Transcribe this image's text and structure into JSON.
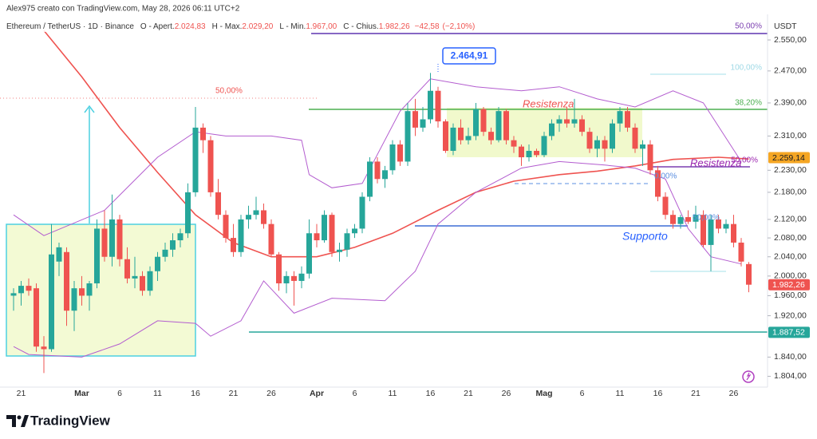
{
  "chart_data": {
    "type": "candlestick",
    "header": "Alex975 creato con TradingView.com, May 28, 2026 06:11 UTC+2",
    "symbol": "Ethereum / TetherUS · 1D · Binance",
    "ohlc_legend": [
      {
        "name": "O - Apert.",
        "value": 2024.83,
        "label": "2.024,83"
      },
      {
        "name": "H - Max.",
        "value": 2029.2,
        "label": "2.029,20"
      },
      {
        "name": "L - Min.",
        "value": 1967,
        "label": "1.967,00"
      },
      {
        "name": "C - Chius.",
        "value": 1982.26,
        "label": "1.982,26"
      }
    ],
    "change": {
      "value": -42.58,
      "label": "−42,58"
    },
    "change_pct": {
      "value": -2.1,
      "label": "(−2,10%)"
    },
    "currency": "USDT",
    "categories": [
      null,
      "21",
      null,
      null,
      null,
      null,
      null,
      null,
      null,
      "Mar",
      null,
      null,
      null,
      null,
      "6",
      null,
      null,
      null,
      null,
      "11",
      null,
      null,
      null,
      null,
      "16",
      null,
      null,
      null,
      null,
      "21",
      null,
      null,
      null,
      null,
      "26",
      null,
      null,
      null,
      null,
      null,
      "Apr",
      null,
      null,
      null,
      null,
      "6",
      null,
      null,
      null,
      null,
      "11",
      null,
      null,
      null,
      null,
      "16",
      null,
      null,
      null,
      null,
      "21",
      null,
      null,
      null,
      null,
      "26",
      null,
      null,
      null,
      null,
      "Mag",
      null,
      null,
      null,
      null,
      "6",
      null,
      null,
      null,
      null,
      "11",
      null,
      null,
      null,
      null,
      "16",
      null,
      null,
      null,
      null,
      "21",
      null,
      null,
      null,
      null,
      "26",
      null,
      null
    ],
    "open": [
      1960,
      1965,
      1980,
      1975,
      1860,
      1855,
      2030,
      2050,
      1930,
      1975,
      1960,
      1985,
      2100,
      2040,
      2120,
      2035,
      1995,
      2000,
      1970,
      2010,
      2040,
      2055,
      2075,
      2090,
      2180,
      2330,
      2300,
      2180,
      2130,
      2080,
      2050,
      2120,
      2130,
      2140,
      2110,
      2045,
      1985,
      2000,
      1990,
      2005,
      2090,
      2075,
      2130,
      2050,
      2055,
      2090,
      2100,
      2170,
      2250,
      2210,
      2230,
      2290,
      2250,
      2370,
      2330,
      2350,
      2420,
      2345,
      2275,
      2330,
      2300,
      2310,
      2375,
      2320,
      2300,
      2370,
      2300,
      2285,
      2260,
      2275,
      2265,
      2310,
      2340,
      2350,
      2340,
      2350,
      2320,
      2280,
      2300,
      2280,
      2340,
      2370,
      2330,
      2280,
      2290,
      2230,
      2170,
      2130,
      2110,
      2125,
      2115,
      2130,
      2065,
      2120,
      2100,
      2110,
      2070,
      2024.83
    ],
    "high": [
      1975,
      1990,
      1995,
      1985,
      1880,
      2110,
      2070,
      2060,
      1990,
      2000,
      1990,
      2120,
      2140,
      2175,
      2130,
      2060,
      2040,
      2010,
      2020,
      2050,
      2070,
      2090,
      2100,
      2200,
      2380,
      2340,
      2310,
      2210,
      2140,
      2110,
      2130,
      2150,
      2170,
      2155,
      2120,
      2050,
      2010,
      2010,
      2020,
      2120,
      2110,
      2140,
      2135,
      2070,
      2100,
      2110,
      2180,
      2260,
      2260,
      2240,
      2300,
      2300,
      2390,
      2400,
      2380,
      2464.91,
      2430,
      2350,
      2340,
      2350,
      2330,
      2390,
      2380,
      2330,
      2380,
      2375,
      2310,
      2290,
      2290,
      2280,
      2320,
      2350,
      2360,
      2380,
      2400,
      2360,
      2330,
      2310,
      2310,
      2350,
      2380,
      2380,
      2340,
      2300,
      2300,
      2240,
      2180,
      2140,
      2130,
      2140,
      2150,
      2140,
      2130,
      2130,
      2120,
      2130,
      2080,
      2029.2
    ],
    "low": [
      1930,
      1940,
      1960,
      1850,
      1810,
      1850,
      2000,
      1900,
      1890,
      1940,
      1930,
      1975,
      2030,
      2020,
      2020,
      1985,
      1975,
      1960,
      1960,
      1990,
      2030,
      2040,
      2060,
      2080,
      2170,
      2270,
      2170,
      2120,
      2070,
      2040,
      2040,
      2100,
      2120,
      2100,
      2040,
      1970,
      1965,
      1940,
      1975,
      1995,
      2060,
      2070,
      2040,
      2030,
      2040,
      2080,
      2090,
      2160,
      2200,
      2190,
      2220,
      2240,
      2240,
      2310,
      2320,
      2340,
      2330,
      2270,
      2265,
      2290,
      2290,
      2300,
      2310,
      2290,
      2295,
      2290,
      2270,
      2240,
      2250,
      2260,
      2260,
      2300,
      2320,
      2330,
      2330,
      2310,
      2270,
      2260,
      2250,
      2270,
      2320,
      2320,
      2270,
      2240,
      2220,
      2160,
      2120,
      2100,
      2100,
      2110,
      2100,
      2060,
      2010,
      2090,
      2090,
      2060,
      2020,
      1967
    ],
    "close": [
      1965,
      1980,
      1970,
      1860,
      1855,
      2045,
      2060,
      1930,
      1975,
      1960,
      1985,
      2100,
      2040,
      2120,
      2035,
      1995,
      2000,
      1970,
      2010,
      2040,
      2055,
      2075,
      2090,
      2180,
      2330,
      2300,
      2180,
      2130,
      2080,
      2050,
      2120,
      2130,
      2140,
      2110,
      2045,
      1985,
      2000,
      1990,
      2005,
      2090,
      2075,
      2130,
      2050,
      2055,
      2090,
      2100,
      2170,
      2250,
      2210,
      2230,
      2290,
      2250,
      2370,
      2330,
      2350,
      2420,
      2345,
      2275,
      2330,
      2300,
      2310,
      2375,
      2320,
      2300,
      2370,
      2300,
      2285,
      2260,
      2275,
      2265,
      2310,
      2340,
      2350,
      2340,
      2350,
      2320,
      2280,
      2300,
      2280,
      2340,
      2370,
      2330,
      2280,
      2290,
      2230,
      2170,
      2130,
      2110,
      2125,
      2115,
      2130,
      2065,
      2120,
      2100,
      2110,
      2070,
      2030,
      1982.26
    ],
    "up_color": "#26a69a",
    "down_color": "#ef5350",
    "overlays": [
      {
        "color": "#ef5350",
        "width": 1.6,
        "x": [
          4,
          9,
          14,
          19,
          24,
          29,
          34,
          40,
          45,
          50,
          56,
          61,
          66,
          72,
          77,
          82,
          87,
          93,
          97
        ],
        "values": [
          2575,
          2455,
          2330,
          2225,
          2130,
          2070,
          2040,
          2040,
          2060,
          2090,
          2140,
          2180,
          2205,
          2220,
          2228,
          2240,
          2255,
          2260,
          2256
        ]
      },
      {
        "color": "#b35ccf",
        "width": 1,
        "x": [
          0,
          4,
          12,
          19,
          24,
          28,
          34,
          38,
          39,
          42,
          46,
          51,
          55,
          61,
          67,
          72,
          77,
          82,
          87,
          91,
          96
        ],
        "values": [
          2130,
          2085,
          2140,
          2260,
          2320,
          2310,
          2310,
          2300,
          2220,
          2190,
          2200,
          2370,
          2450,
          2430,
          2420,
          2430,
          2400,
          2380,
          2420,
          2390,
          2250
        ]
      },
      {
        "color": "#b35ccf",
        "width": 1,
        "x": [
          0,
          2,
          9,
          14,
          19,
          24,
          26,
          30,
          33,
          37,
          42,
          49,
          53,
          56,
          61,
          67,
          72,
          78,
          82,
          86,
          89,
          92,
          96
        ],
        "values": [
          1860,
          1845,
          1840,
          1865,
          1910,
          1905,
          1880,
          1910,
          1990,
          1925,
          1955,
          1950,
          2010,
          2110,
          2180,
          2235,
          2250,
          2242,
          2235,
          2210,
          2100,
          2040,
          2025
        ]
      }
    ],
    "log_scale": true,
    "grid": false,
    "ylim": [
      1784,
      2618
    ],
    "yticks": [
      {
        "value": 2550,
        "label": "2.550,00"
      },
      {
        "value": 2470,
        "label": "2.470,00"
      },
      {
        "value": 2390,
        "label": "2.390,00"
      },
      {
        "value": 2310,
        "label": "2.310,00"
      },
      {
        "value": 2230,
        "label": "2.230,00"
      },
      {
        "value": 2180,
        "label": "2.180,00"
      },
      {
        "value": 2120,
        "label": "2.120,00"
      },
      {
        "value": 2080,
        "label": "2.080,00"
      },
      {
        "value": 2040,
        "label": "2.040,00"
      },
      {
        "value": 2000,
        "label": "2.000,00"
      },
      {
        "value": 1960,
        "label": "1.960,00"
      },
      {
        "value": 1920,
        "label": "1.920,00"
      },
      {
        "value": 1840,
        "label": "1.840,00"
      },
      {
        "value": 1804,
        "label": "1.804,00"
      }
    ],
    "price_tags": [
      {
        "value": 2259.14,
        "label": "2.259,14",
        "color": "#f5a623"
      },
      {
        "value": 1982.26,
        "label": "1.982,26",
        "color": "#ef5350"
      },
      {
        "value": 1887.52,
        "label": "1.887,52",
        "color": "#26a69a"
      }
    ],
    "high_callout": {
      "value": 2464.91,
      "label": "2.464,91"
    },
    "annotations": [
      "Resistenza",
      "Resistenza",
      "Supporto",
      "50,00%",
      "100,00%",
      "38,20%",
      "50,00%",
      "50,00%",
      "0,00%",
      "50,00%"
    ],
    "watermark": "TradingView"
  }
}
